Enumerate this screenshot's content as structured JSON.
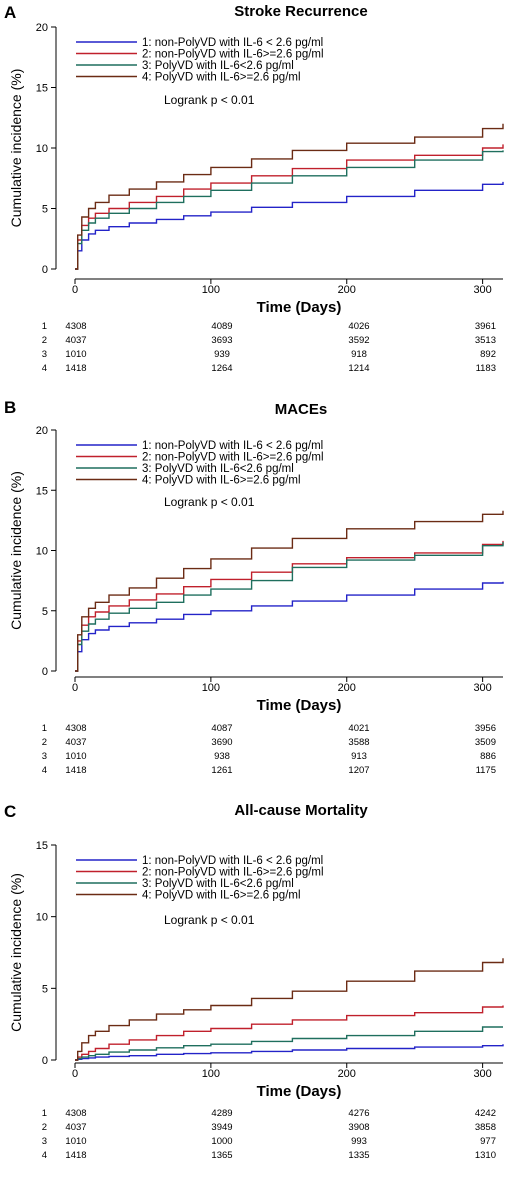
{
  "chart_data": [
    {
      "type": "line",
      "panel": "A",
      "title": "Stroke Recurrence",
      "xlabel": "Time (Days)",
      "ylabel": "Cumulative incidence (%)",
      "xlim": [
        0,
        315
      ],
      "ylim": [
        0,
        20
      ],
      "xticks": [
        0,
        100,
        200,
        300
      ],
      "yticks": [
        0,
        5,
        10,
        15,
        20
      ],
      "legend_position": "top-left",
      "annotation": "Logrank p < 0.01",
      "x": [
        0,
        2,
        5,
        10,
        15,
        25,
        40,
        60,
        80,
        100,
        130,
        160,
        200,
        250,
        300,
        315
      ],
      "series": [
        {
          "name": "1: non-PolyVD with IL-6 < 2.6 pg/ml",
          "color": "#2323c8",
          "values": [
            0,
            1.5,
            2.4,
            2.9,
            3.2,
            3.5,
            3.8,
            4.1,
            4.4,
            4.7,
            5.1,
            5.5,
            6.0,
            6.5,
            7.0,
            7.2
          ]
        },
        {
          "name": "2: non-PolyVD with IL-6>=2.6 pg/ml",
          "color": "#c0202c",
          "values": [
            0,
            2.4,
            3.6,
            4.2,
            4.6,
            5.0,
            5.5,
            6.0,
            6.6,
            7.1,
            7.7,
            8.3,
            9.0,
            9.4,
            10.0,
            10.3
          ]
        },
        {
          "name": "3: PolyVD with IL-6<2.6 pg/ml",
          "color": "#1f6f5e",
          "values": [
            0,
            2.1,
            3.2,
            3.8,
            4.2,
            4.6,
            5.0,
            5.5,
            6.0,
            6.5,
            7.1,
            7.7,
            8.4,
            9.0,
            9.7,
            9.8
          ]
        },
        {
          "name": "4: PolyVD with IL-6>=2.6 pg/ml",
          "color": "#6b2b14",
          "values": [
            0,
            2.8,
            4.3,
            5.0,
            5.5,
            6.1,
            6.6,
            7.2,
            7.8,
            8.4,
            9.1,
            9.8,
            10.4,
            10.9,
            11.6,
            12.0
          ]
        }
      ],
      "risk_table": {
        "timepoints": [
          0,
          100,
          200,
          300
        ],
        "rows": [
          {
            "label": "1",
            "values": [
              "4308",
              "4089",
              "4026",
              "3961"
            ]
          },
          {
            "label": "2",
            "values": [
              "4037",
              "3693",
              "3592",
              "3513"
            ]
          },
          {
            "label": "3",
            "values": [
              "1010",
              "939",
              "918",
              "892"
            ]
          },
          {
            "label": "4",
            "values": [
              "1418",
              "1264",
              "1214",
              "1183"
            ]
          }
        ]
      }
    },
    {
      "type": "line",
      "panel": "B",
      "title": "MACEs",
      "xlabel": "Time (Days)",
      "ylabel": "Cumulative incidence (%)",
      "xlim": [
        0,
        315
      ],
      "ylim": [
        0,
        20
      ],
      "xticks": [
        0,
        100,
        200,
        300
      ],
      "yticks": [
        0,
        5,
        10,
        15,
        20
      ],
      "legend_position": "top-left",
      "annotation": "Logrank p < 0.01",
      "x": [
        0,
        2,
        5,
        10,
        15,
        25,
        40,
        60,
        80,
        100,
        130,
        160,
        200,
        250,
        300,
        315
      ],
      "series": [
        {
          "name": "1: non-PolyVD with IL-6 < 2.6 pg/ml",
          "color": "#2323c8",
          "values": [
            0,
            1.6,
            2.6,
            3.1,
            3.4,
            3.7,
            4.0,
            4.3,
            4.7,
            5.0,
            5.4,
            5.8,
            6.3,
            6.8,
            7.3,
            7.4
          ]
        },
        {
          "name": "2: non-PolyVD with IL-6>=2.6 pg/ml",
          "color": "#c0202c",
          "values": [
            0,
            2.5,
            3.8,
            4.5,
            4.9,
            5.4,
            5.9,
            6.4,
            7.0,
            7.6,
            8.2,
            8.9,
            9.4,
            9.8,
            10.5,
            10.8
          ]
        },
        {
          "name": "3: PolyVD with IL-6<2.6 pg/ml",
          "color": "#1f6f5e",
          "values": [
            0,
            2.2,
            3.3,
            3.9,
            4.3,
            4.8,
            5.2,
            5.7,
            6.3,
            6.8,
            7.5,
            8.6,
            9.2,
            9.6,
            10.4,
            10.7
          ]
        },
        {
          "name": "4: PolyVD with IL-6>=2.6 pg/ml",
          "color": "#6b2b14",
          "values": [
            0,
            3.0,
            4.5,
            5.2,
            5.7,
            6.3,
            6.9,
            7.7,
            8.5,
            9.3,
            10.2,
            11.0,
            11.8,
            12.4,
            13.0,
            13.3
          ]
        }
      ],
      "risk_table": {
        "timepoints": [
          0,
          100,
          200,
          300
        ],
        "rows": [
          {
            "label": "1",
            "values": [
              "4308",
              "4087",
              "4021",
              "3956"
            ]
          },
          {
            "label": "2",
            "values": [
              "4037",
              "3690",
              "3588",
              "3509"
            ]
          },
          {
            "label": "3",
            "values": [
              "1010",
              "938",
              "913",
              "886"
            ]
          },
          {
            "label": "4",
            "values": [
              "1418",
              "1261",
              "1207",
              "1175"
            ]
          }
        ]
      }
    },
    {
      "type": "line",
      "panel": "C",
      "title": "All-cause Mortality",
      "xlabel": "Time (Days)",
      "ylabel": "Cumulative incidence (%)",
      "xlim": [
        0,
        315
      ],
      "ylim": [
        0,
        15
      ],
      "xticks": [
        0,
        100,
        200,
        300
      ],
      "yticks": [
        0,
        5,
        10,
        15
      ],
      "legend_position": "top-left",
      "annotation": "Logrank p < 0.01",
      "x": [
        0,
        2,
        5,
        10,
        15,
        25,
        40,
        60,
        80,
        100,
        130,
        160,
        200,
        250,
        300,
        315
      ],
      "series": [
        {
          "name": "1: non-PolyVD with IL-6 < 2.6 pg/ml",
          "color": "#2323c8",
          "values": [
            0,
            0.05,
            0.1,
            0.15,
            0.2,
            0.25,
            0.3,
            0.4,
            0.45,
            0.5,
            0.6,
            0.7,
            0.8,
            0.9,
            1.0,
            1.1
          ]
        },
        {
          "name": "2: non-PolyVD with IL-6>=2.6 pg/ml",
          "color": "#c0202c",
          "values": [
            0,
            0.2,
            0.4,
            0.6,
            0.8,
            1.1,
            1.4,
            1.7,
            2.0,
            2.2,
            2.5,
            2.8,
            3.1,
            3.3,
            3.7,
            3.8
          ]
        },
        {
          "name": "3: PolyVD with IL-6<2.6 pg/ml",
          "color": "#1f6f5e",
          "values": [
            0,
            0.1,
            0.2,
            0.3,
            0.4,
            0.55,
            0.7,
            0.85,
            1.0,
            1.1,
            1.3,
            1.5,
            1.7,
            2.0,
            2.3,
            2.3
          ]
        },
        {
          "name": "4: PolyVD with IL-6>=2.6 pg/ml",
          "color": "#6b2b14",
          "values": [
            0,
            0.6,
            1.2,
            1.7,
            2.0,
            2.4,
            2.8,
            3.2,
            3.5,
            3.8,
            4.3,
            4.8,
            5.5,
            6.2,
            6.8,
            7.1
          ]
        }
      ],
      "risk_table": {
        "timepoints": [
          0,
          100,
          200,
          300
        ],
        "rows": [
          {
            "label": "1",
            "values": [
              "4308",
              "4289",
              "4276",
              "4242"
            ]
          },
          {
            "label": "2",
            "values": [
              "4037",
              "3949",
              "3908",
              "3858"
            ]
          },
          {
            "label": "3",
            "values": [
              "1010",
              "1000",
              "993",
              "977"
            ]
          },
          {
            "label": "4",
            "values": [
              "1418",
              "1365",
              "1335",
              "1310"
            ]
          }
        ]
      }
    }
  ]
}
